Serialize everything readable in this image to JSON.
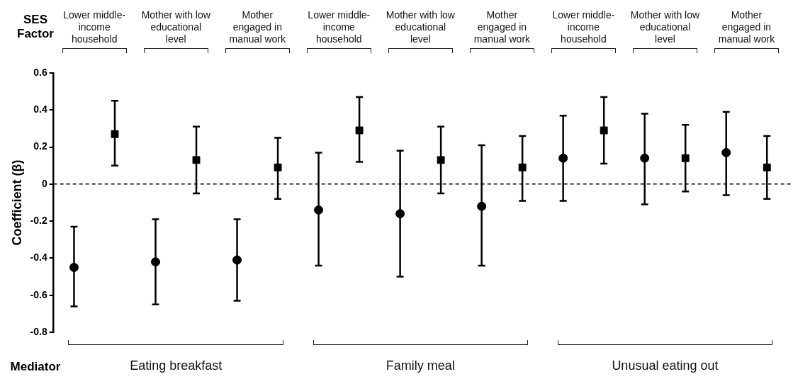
{
  "chart_data": {
    "type": "scatter",
    "ylabel": "Coefficient (β)",
    "categories": [
      null,
      null,
      null,
      null,
      null,
      null,
      null,
      null,
      null,
      null,
      null,
      null,
      null,
      null,
      null,
      null,
      null,
      null
    ],
    "series": [
      {
        "color": "#000000",
        "marker": "circle",
        "values": [
          -0.45,
          null,
          -0.42,
          null,
          -0.41,
          null,
          -0.14,
          null,
          -0.16,
          null,
          -0.12,
          null,
          0.14,
          null,
          0.14,
          null,
          0.17,
          null
        ],
        "errors": [
          [
            -0.66,
            -0.23
          ],
          null,
          [
            -0.65,
            -0.19
          ],
          null,
          [
            -0.63,
            -0.19
          ],
          null,
          [
            -0.44,
            0.17
          ],
          null,
          [
            -0.5,
            0.18
          ],
          null,
          [
            -0.44,
            0.21
          ],
          null,
          [
            -0.09,
            0.37
          ],
          null,
          [
            -0.11,
            0.38
          ],
          null,
          [
            -0.06,
            0.39
          ],
          null
        ]
      },
      {
        "color": "#000000",
        "marker": "square",
        "values": [
          null,
          0.27,
          null,
          0.13,
          null,
          0.09,
          null,
          0.29,
          null,
          0.13,
          null,
          0.09,
          null,
          0.29,
          null,
          0.14,
          null,
          0.09
        ],
        "errors": [
          null,
          [
            0.1,
            0.45
          ],
          null,
          [
            -0.05,
            0.31
          ],
          null,
          [
            -0.08,
            0.25
          ],
          null,
          [
            0.12,
            0.47
          ],
          null,
          [
            -0.05,
            0.31
          ],
          null,
          [
            -0.09,
            0.26
          ],
          null,
          [
            0.11,
            0.47
          ],
          null,
          [
            -0.04,
            0.32
          ],
          null,
          [
            -0.08,
            0.26
          ]
        ]
      }
    ],
    "ylim": [
      -0.8,
      0.6
    ],
    "yticks": [
      -0.8,
      -0.6,
      -0.4,
      -0.2,
      0,
      0.2,
      0.4,
      0.6
    ],
    "ref_lines": [
      {
        "axis": "y",
        "value": 0,
        "line_style": "dashed",
        "color": "#000000"
      }
    ],
    "grid": false,
    "legend": false,
    "tick_labels": "y",
    "annotations": [
      "SES Factor",
      "Lower middle-income household",
      "Mother with low educational level",
      "Mother engaged in manual work",
      "Lower middle-income household",
      "Mother with low educational level",
      "Mother engaged in manual work",
      "Lower middle-income household",
      "Mother with low educational level",
      "Mother engaged in manual work",
      "Mediator",
      "Eating breakfast",
      "Family meal",
      "Unusual eating out"
    ]
  }
}
